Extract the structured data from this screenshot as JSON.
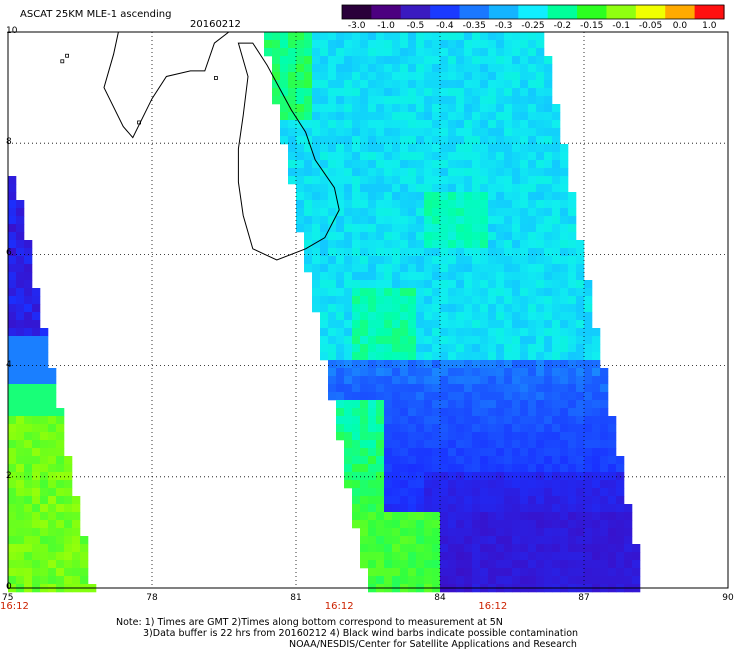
{
  "header": {
    "title": "ASCAT 25KM MLE-1 ascending",
    "date": "20160212"
  },
  "colorbar": {
    "labels": [
      "-3.0",
      "-1.0",
      "-0.5",
      "-0.4",
      "-0.35",
      "-0.3",
      "-0.25",
      "-0.2",
      "-0.15",
      "-0.1",
      "-0.05",
      "0.0",
      "1.0"
    ],
    "colors": [
      "#2a003a",
      "#4c0080",
      "#3a1ac0",
      "#1a3aff",
      "#1a78ff",
      "#14b4ff",
      "#10eeff",
      "#00ff9a",
      "#2cff20",
      "#90ff10",
      "#f0ff00",
      "#ffaa00",
      "#ff1010"
    ]
  },
  "axes": {
    "lon_min": 75,
    "lon_max": 90,
    "lat_min": 0,
    "lat_max": 10,
    "x_ticks": [
      "75",
      "78",
      "81",
      "84",
      "87",
      "90"
    ],
    "y_ticks": [
      "0",
      "2",
      "4",
      "6",
      "8",
      "10"
    ],
    "times": [
      {
        "lon": 75,
        "label": "16:12"
      },
      {
        "lon": 81.9,
        "label": "16:12"
      },
      {
        "lon": 85.1,
        "label": "16:12"
      }
    ]
  },
  "notes": {
    "line1": "Note: 1) Times are GMT 2)Times along bottom correspond to measurement at 5N",
    "line2": "3)Data buffer is 22 hrs from 20160212 4) Black wind barbs indicate possible contamination",
    "line3": "NOAA/NESDIS/Center for Satellite Applications and Research"
  }
}
